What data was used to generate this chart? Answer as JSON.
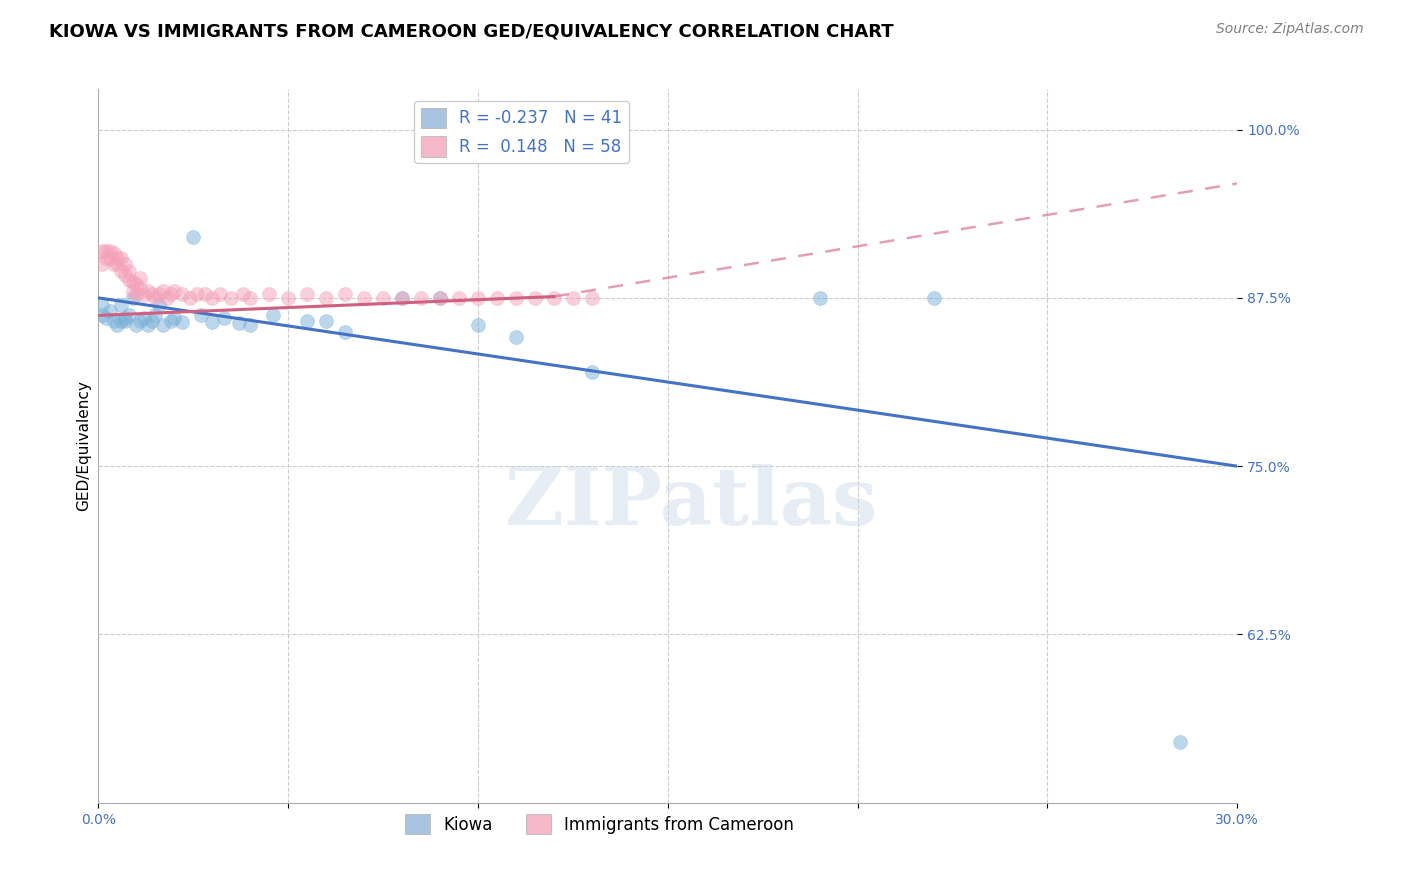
{
  "title": "KIOWA VS IMMIGRANTS FROM CAMEROON GED/EQUIVALENCY CORRELATION CHART",
  "source": "Source: ZipAtlas.com",
  "ylabel": "GED/Equivalency",
  "xlim": [
    0.0,
    0.3
  ],
  "ylim": [
    0.5,
    1.03
  ],
  "xticks": [
    0.0,
    0.05,
    0.1,
    0.15,
    0.2,
    0.25,
    0.3
  ],
  "xticklabels": [
    "0.0%",
    "",
    "",
    "",
    "",
    "",
    "30.0%"
  ],
  "yticks": [
    0.625,
    0.75,
    0.875,
    1.0
  ],
  "yticklabels": [
    "62.5%",
    "75.0%",
    "87.5%",
    "100.0%"
  ],
  "legend_items": [
    {
      "label_r": "R = -0.237",
      "label_n": "N = 41",
      "color": "#a8c4e0"
    },
    {
      "label_r": "R =  0.148",
      "label_n": "N = 58",
      "color": "#f4b8c8"
    }
  ],
  "kiowa_scatter_x": [
    0.001,
    0.001,
    0.002,
    0.003,
    0.004,
    0.005,
    0.006,
    0.006,
    0.007,
    0.007,
    0.008,
    0.009,
    0.01,
    0.011,
    0.012,
    0.013,
    0.014,
    0.015,
    0.016,
    0.017,
    0.019,
    0.02,
    0.022,
    0.025,
    0.027,
    0.03,
    0.033,
    0.037,
    0.04,
    0.046,
    0.055,
    0.06,
    0.065,
    0.08,
    0.09,
    0.1,
    0.11,
    0.13,
    0.19,
    0.22,
    0.285
  ],
  "kiowa_scatter_y": [
    0.87,
    0.862,
    0.86,
    0.865,
    0.858,
    0.855,
    0.87,
    0.858,
    0.86,
    0.858,
    0.862,
    0.875,
    0.855,
    0.858,
    0.86,
    0.855,
    0.858,
    0.862,
    0.87,
    0.855,
    0.858,
    0.86,
    0.857,
    0.92,
    0.862,
    0.857,
    0.86,
    0.856,
    0.855,
    0.862,
    0.858,
    0.858,
    0.85,
    0.875,
    0.875,
    0.855,
    0.846,
    0.82,
    0.875,
    0.875,
    0.545
  ],
  "cameroon_scatter_x": [
    0.001,
    0.001,
    0.002,
    0.002,
    0.003,
    0.003,
    0.004,
    0.004,
    0.005,
    0.005,
    0.006,
    0.006,
    0.007,
    0.007,
    0.008,
    0.008,
    0.009,
    0.009,
    0.01,
    0.01,
    0.011,
    0.011,
    0.012,
    0.013,
    0.014,
    0.015,
    0.016,
    0.017,
    0.018,
    0.019,
    0.02,
    0.022,
    0.024,
    0.026,
    0.028,
    0.03,
    0.032,
    0.035,
    0.038,
    0.04,
    0.045,
    0.05,
    0.055,
    0.06,
    0.065,
    0.07,
    0.075,
    0.08,
    0.085,
    0.09,
    0.095,
    0.1,
    0.105,
    0.11,
    0.115,
    0.12,
    0.125,
    0.13
  ],
  "cameroon_scatter_y": [
    0.9,
    0.91,
    0.905,
    0.91,
    0.905,
    0.91,
    0.9,
    0.908,
    0.9,
    0.905,
    0.895,
    0.905,
    0.892,
    0.9,
    0.888,
    0.895,
    0.88,
    0.887,
    0.878,
    0.885,
    0.882,
    0.89,
    0.877,
    0.88,
    0.878,
    0.875,
    0.878,
    0.88,
    0.875,
    0.878,
    0.88,
    0.878,
    0.875,
    0.878,
    0.878,
    0.875,
    0.878,
    0.875,
    0.878,
    0.875,
    0.878,
    0.875,
    0.878,
    0.875,
    0.878,
    0.875,
    0.875,
    0.875,
    0.875,
    0.875,
    0.875,
    0.875,
    0.875,
    0.875,
    0.875,
    0.875,
    0.875,
    0.875
  ],
  "kiowa_line_x0": 0.0,
  "kiowa_line_x1": 0.3,
  "kiowa_line_y0": 0.875,
  "kiowa_line_y1": 0.75,
  "cameroon_line_solid_x0": 0.0,
  "cameroon_line_solid_x1": 0.12,
  "cameroon_line_solid_y0": 0.862,
  "cameroon_line_solid_y1": 0.876,
  "cameroon_line_dash_x0": 0.12,
  "cameroon_line_dash_x1": 0.3,
  "cameroon_line_dash_y0": 0.876,
  "cameroon_line_dash_y1": 0.96,
  "scatter_size": 100,
  "scatter_alpha": 0.5,
  "kiowa_color": "#7ab0d8",
  "cameroon_color": "#f4a0b8",
  "line_kiowa_color": "#4472c4",
  "line_cameroon_color": "#d06080",
  "watermark_text": "ZIPatlas",
  "background_color": "#ffffff",
  "title_fontsize": 13,
  "axis_label_fontsize": 11,
  "tick_fontsize": 10,
  "legend_fontsize": 12,
  "source_fontsize": 10
}
